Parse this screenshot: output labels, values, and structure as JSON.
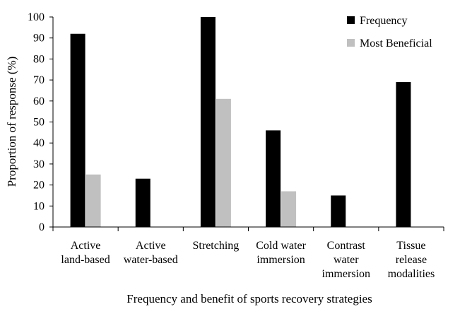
{
  "chart_data": {
    "type": "bar",
    "categories": [
      [
        "Active",
        "land-based"
      ],
      [
        "Active",
        "water-based"
      ],
      [
        "Stretching"
      ],
      [
        "Cold water",
        "immersion"
      ],
      [
        "Contrast",
        "water",
        "immersion"
      ],
      [
        "Tissue",
        "release",
        "modalities"
      ]
    ],
    "series": [
      {
        "name": "Frequency",
        "color": "#000000",
        "values": [
          92,
          23,
          100,
          46,
          15,
          69
        ]
      },
      {
        "name": "Most Beneficial",
        "color": "#c0c0c0",
        "values": [
          25,
          0,
          61,
          17,
          0,
          0
        ]
      }
    ],
    "xlabel": "Frequency and benefit of sports recovery strategies",
    "ylabel": "Proportion of response (%)",
    "ylim": [
      0,
      100
    ],
    "yticks": [
      0,
      10,
      20,
      30,
      40,
      50,
      60,
      70,
      80,
      90,
      100
    ],
    "grid": false,
    "legend_position": "top-right"
  }
}
